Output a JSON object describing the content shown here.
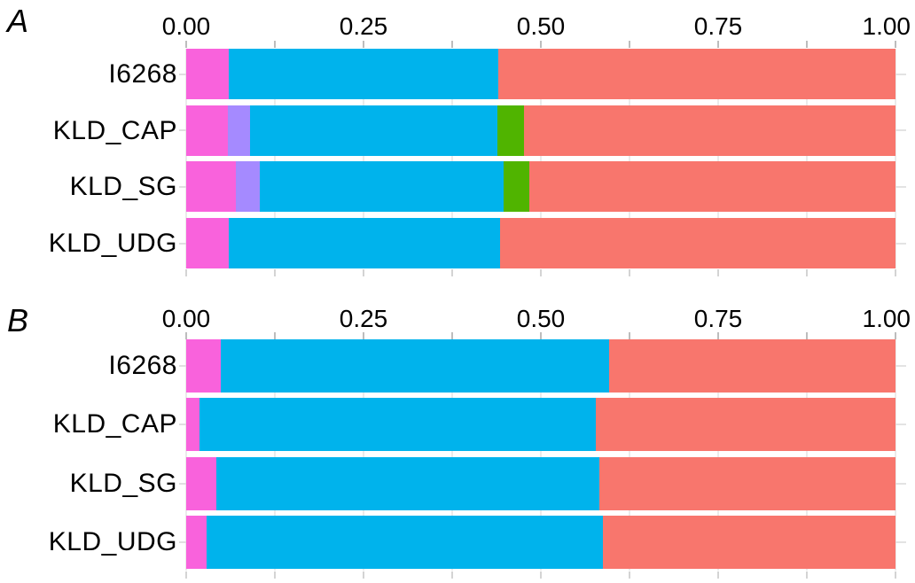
{
  "chart_data": [
    {
      "type": "bar",
      "orientation": "horizontal",
      "stacked": true,
      "panel_label": "A",
      "categories": [
        "I6268",
        "KLD_CAP",
        "KLD_SG",
        "KLD_UDG"
      ],
      "series": [
        {
          "name": "component-pink",
          "color": "#F962DC",
          "values": [
            0.06,
            0.059,
            0.07,
            0.06
          ]
        },
        {
          "name": "component-purple",
          "color": "#A58AFF",
          "values": [
            0.0,
            0.031,
            0.034,
            0.0
          ]
        },
        {
          "name": "component-blue",
          "color": "#00B3EC",
          "values": [
            0.38,
            0.349,
            0.344,
            0.383
          ]
        },
        {
          "name": "component-green",
          "color": "#50B400",
          "values": [
            0.0,
            0.037,
            0.036,
            0.0
          ]
        },
        {
          "name": "component-red",
          "color": "#F8766D",
          "values": [
            0.56,
            0.524,
            0.516,
            0.557
          ]
        }
      ],
      "xlim": [
        0,
        1
      ],
      "xticks": [
        {
          "value": 0.0,
          "label": "0.00"
        },
        {
          "value": 0.25,
          "label": "0.25"
        },
        {
          "value": 0.5,
          "label": "0.50"
        },
        {
          "value": 0.75,
          "label": "0.75"
        },
        {
          "value": 1.0,
          "label": "1.00"
        }
      ],
      "minor_tick_interval": 0.125,
      "legend": "none",
      "grid": true
    },
    {
      "type": "bar",
      "orientation": "horizontal",
      "stacked": true,
      "panel_label": "B",
      "categories": [
        "I6268",
        "KLD_CAP",
        "KLD_SG",
        "KLD_UDG"
      ],
      "series": [
        {
          "name": "component-pink",
          "color": "#F962DC",
          "values": [
            0.049,
            0.019,
            0.043,
            0.029
          ]
        },
        {
          "name": "component-blue",
          "color": "#00B3EC",
          "values": [
            0.547,
            0.558,
            0.54,
            0.558
          ]
        },
        {
          "name": "component-red",
          "color": "#F8766D",
          "values": [
            0.404,
            0.423,
            0.417,
            0.413
          ]
        }
      ],
      "xlim": [
        0,
        1
      ],
      "xticks": [
        {
          "value": 0.0,
          "label": "0.00"
        },
        {
          "value": 0.25,
          "label": "0.25"
        },
        {
          "value": 0.5,
          "label": "0.50"
        },
        {
          "value": 0.75,
          "label": "0.75"
        },
        {
          "value": 1.0,
          "label": "1.00"
        }
      ],
      "minor_tick_interval": 0.125,
      "legend": "none",
      "grid": true
    }
  ],
  "style": {
    "background": "#FFFFFF",
    "text_color": "#000000",
    "top_tick_color": "#BDBDBD",
    "bottom_tick_color": "#D4D4D4",
    "gridline_color": "#EBEBEB",
    "end_dash_color": "#E3E3E3",
    "y_tick_color": "#E0E0E0"
  }
}
